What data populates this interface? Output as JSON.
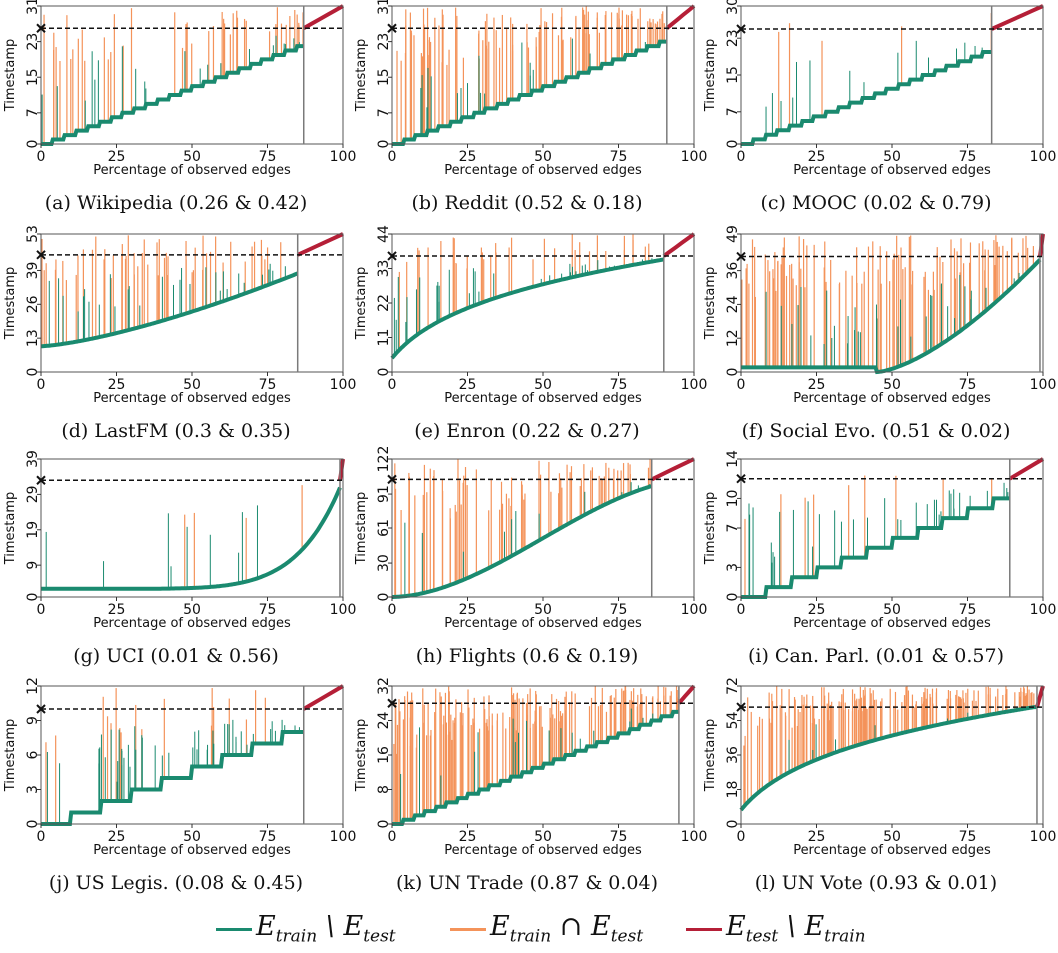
{
  "colors": {
    "train_only": "#1a8a6f",
    "train_and_test": "#f4935a",
    "test_only": "#b51f37",
    "threshold": "#111111",
    "split": "#7a7a7a"
  },
  "chart_data": [
    {
      "type": "scatter",
      "caption": "(a) Wikipedia (0.26 & 0.42)",
      "xlabel": "Percentage of observed edges",
      "ylabel": "Timestamp",
      "xlim": [
        0,
        100
      ],
      "x_ticks": [
        "0",
        "25",
        "50",
        "75",
        "100"
      ],
      "y_ticks": [
        "0",
        "7",
        "15",
        "23",
        "31"
      ],
      "ylim": [
        0,
        31
      ],
      "threshold": 26,
      "split_x": 87,
      "curve": "staircase",
      "steps": 26,
      "orange": 0.25,
      "green_tail": 0.35
    },
    {
      "type": "scatter",
      "caption": "(b) Reddit (0.52 & 0.18)",
      "xlabel": "Percentage of observed edges",
      "ylabel": "Timestamp",
      "xlim": [
        0,
        100
      ],
      "x_ticks": [
        "0",
        "25",
        "50",
        "75",
        "100"
      ],
      "y_ticks": [
        "0",
        "7",
        "15",
        "23",
        "31"
      ],
      "ylim": [
        0,
        31
      ],
      "threshold": 26,
      "split_x": 91,
      "curve": "staircase",
      "steps": 26,
      "orange": 0.6,
      "green_tail": 0.3
    },
    {
      "type": "scatter",
      "caption": "(c) MOOC (0.02 & 0.79)",
      "xlabel": "Percentage of observed edges",
      "ylabel": "Timestamp",
      "xlim": [
        0,
        100
      ],
      "x_ticks": [
        "0",
        "25",
        "50",
        "75",
        "100"
      ],
      "y_ticks": [
        "0",
        "7",
        "15",
        "23",
        "30"
      ],
      "ylim": [
        0,
        30
      ],
      "threshold": 25,
      "split_x": 83,
      "curve": "staircase",
      "steps": 25,
      "orange": 0.03,
      "green_tail": 0.25
    },
    {
      "type": "scatter",
      "caption": "(d) LastFM (0.3 & 0.35)",
      "xlabel": "Percentage of observed edges",
      "ylabel": "Timestamp",
      "xlim": [
        0,
        100
      ],
      "x_ticks": [
        "0",
        "25",
        "50",
        "75",
        "100"
      ],
      "y_ticks": [
        "0",
        "13",
        "26",
        "39",
        "53"
      ],
      "ylim": [
        0,
        53
      ],
      "threshold": 45,
      "split_x": 85,
      "curve": "smooth",
      "steps": 45,
      "orange": 0.3,
      "green_tail": 0.5
    },
    {
      "type": "scatter",
      "caption": "(e) Enron (0.22 & 0.27)",
      "xlabel": "Percentage of observed edges",
      "ylabel": "Timestamp",
      "xlim": [
        0,
        100
      ],
      "x_ticks": [
        "0",
        "25",
        "50",
        "75",
        "100"
      ],
      "y_ticks": [
        "0",
        "11",
        "22",
        "33",
        "44"
      ],
      "ylim": [
        0,
        44
      ],
      "threshold": 37,
      "split_x": 90,
      "curve": "log",
      "steps": 37,
      "orange": 0.2,
      "green_tail": 0.6
    },
    {
      "type": "scatter",
      "caption": "(f) Social Evo. (0.51 & 0.02)",
      "xlabel": "Percentage of observed edges",
      "ylabel": "Timestamp",
      "xlim": [
        0,
        100
      ],
      "x_ticks": [
        "0",
        "25",
        "50",
        "75",
        "100"
      ],
      "y_ticks": [
        "0",
        "12",
        "24",
        "36",
        "49"
      ],
      "ylim": [
        0,
        49
      ],
      "threshold": 41,
      "split_x": 99,
      "curve": "late",
      "steps": 41,
      "orange": 0.55,
      "green_tail": 0.6
    },
    {
      "type": "scatter",
      "caption": "(g) UCI (0.01 & 0.56)",
      "xlabel": "Percentage of observed edges",
      "ylabel": "Timestamp",
      "xlim": [
        0,
        100
      ],
      "x_ticks": [
        "0",
        "25",
        "50",
        "75",
        "100"
      ],
      "y_ticks": [
        "0",
        "9",
        "19",
        "29",
        "39"
      ],
      "ylim": [
        0,
        39
      ],
      "threshold": 33,
      "split_x": 99,
      "curve": "exp",
      "steps": 33,
      "orange": 0.02,
      "green_tail": 0.15
    },
    {
      "type": "scatter",
      "caption": "(h) Flights (0.6 & 0.19)",
      "xlabel": "Percentage of observed edges",
      "ylabel": "Timestamp",
      "xlim": [
        0,
        100
      ],
      "x_ticks": [
        "0",
        "25",
        "50",
        "75",
        "100"
      ],
      "y_ticks": [
        "0",
        "30",
        "61",
        "91",
        "122"
      ],
      "ylim": [
        0,
        122
      ],
      "threshold": 104,
      "split_x": 86,
      "curve": "sigmoid",
      "steps": 104,
      "orange": 0.4,
      "green_tail": 0.2
    },
    {
      "type": "scatter",
      "caption": "(i) Can. Parl. (0.01 & 0.57)",
      "xlabel": "Percentage of observed edges",
      "ylabel": "Timestamp",
      "xlim": [
        0,
        100
      ],
      "x_ticks": [
        "0",
        "25",
        "50",
        "75",
        "100"
      ],
      "y_ticks": [
        "0",
        "3",
        "7",
        "10",
        "14"
      ],
      "ylim": [
        0,
        14
      ],
      "threshold": 12,
      "split_x": 89,
      "curve": "staircase",
      "steps": 12,
      "orange": 0.05,
      "green_tail": 0.6
    },
    {
      "type": "scatter",
      "caption": "(j) US Legis. (0.08 & 0.45)",
      "xlabel": "Percentage of observed edges",
      "ylabel": "Timestamp",
      "xlim": [
        0,
        100
      ],
      "x_ticks": [
        "0",
        "25",
        "50",
        "75",
        "100"
      ],
      "y_ticks": [
        "0",
        "3",
        "6",
        "9",
        "12"
      ],
      "ylim": [
        0,
        12
      ],
      "threshold": 10,
      "split_x": 87,
      "curve": "staircase",
      "steps": 10,
      "orange": 0.1,
      "green_tail": 0.8
    },
    {
      "type": "scatter",
      "caption": "(k) UN Trade (0.87 & 0.04)",
      "xlabel": "Percentage of observed edges",
      "ylabel": "Timestamp",
      "xlim": [
        0,
        100
      ],
      "x_ticks": [
        "0",
        "25",
        "50",
        "75",
        "100"
      ],
      "y_ticks": [
        "0",
        "8",
        "16",
        "24",
        "32"
      ],
      "ylim": [
        0,
        32
      ],
      "threshold": 28,
      "split_x": 95,
      "curve": "staircase",
      "steps": 28,
      "orange": 0.9,
      "green_tail": 0.3
    },
    {
      "type": "scatter",
      "caption": "(l) UN Vote (0.93 & 0.01)",
      "xlabel": "Percentage of observed edges",
      "ylabel": "Timestamp",
      "xlim": [
        0,
        100
      ],
      "x_ticks": [
        "0",
        "25",
        "50",
        "75",
        "100"
      ],
      "y_ticks": [
        "0",
        "18",
        "36",
        "54",
        "72"
      ],
      "ylim": [
        0,
        72
      ],
      "threshold": 61,
      "split_x": 98,
      "curve": "log",
      "steps": 61,
      "orange": 0.95,
      "green_tail": 0.15
    }
  ],
  "legend": {
    "items": [
      {
        "main": "E",
        "sub1": "train",
        "op": " \\ ",
        "main2": "E",
        "sub2": "test",
        "color_key": "train_only"
      },
      {
        "main": "E",
        "sub1": "train",
        "op": " ∩ ",
        "main2": "E",
        "sub2": "test",
        "color_key": "train_and_test"
      },
      {
        "main": "E",
        "sub1": "test",
        "op": " \\ ",
        "main2": "E",
        "sub2": "train",
        "color_key": "test_only"
      }
    ]
  }
}
